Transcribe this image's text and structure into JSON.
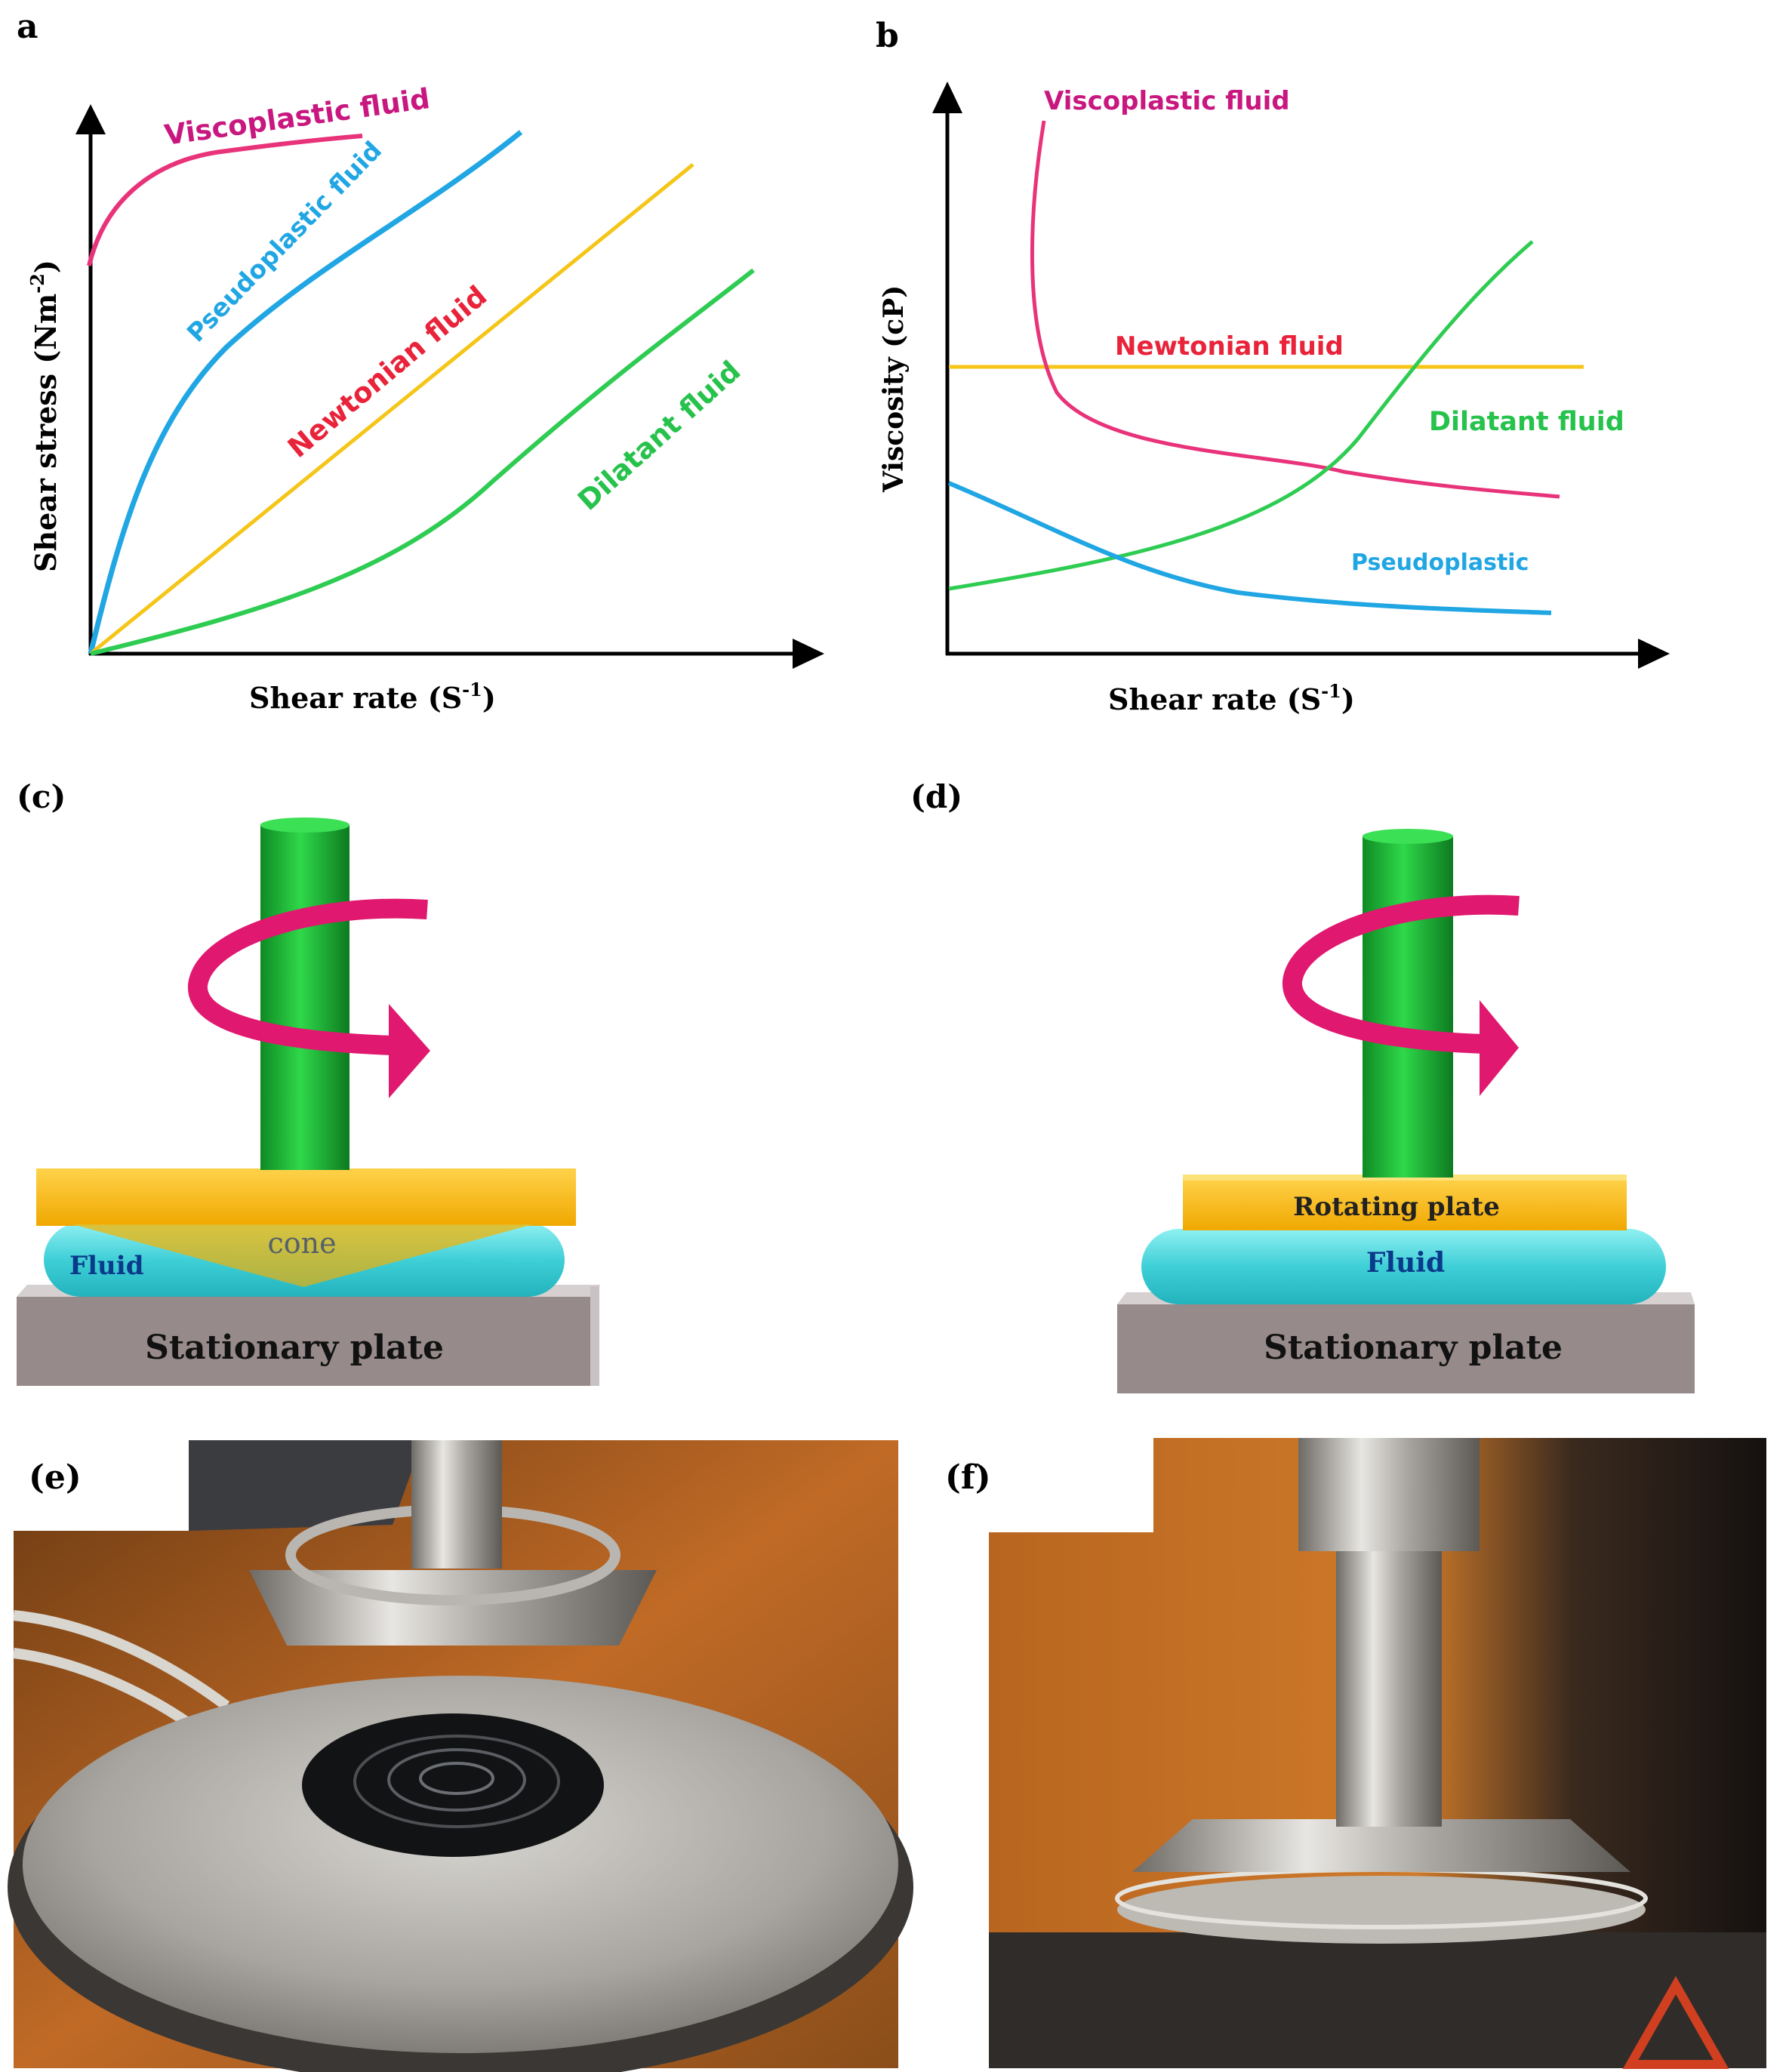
{
  "panels": {
    "a": {
      "letter": "a",
      "xlabel": "Shear rate (S",
      "xlabel_sup": "-1",
      "xlabel_end": ")",
      "ylabel": "Shear stress (Nm",
      "ylabel_sup": "-2",
      "ylabel_end": ")",
      "curves": [
        {
          "name": "Viscoplastic fluid",
          "color": "#e8337a",
          "label_color": "#c8177f"
        },
        {
          "name": "Pseudoplastic fluid",
          "color": "#21a6e4",
          "label_color": "#21a6e4"
        },
        {
          "name": "Newtonian fluid",
          "color": "#f5c518",
          "label_color": "#e8233a"
        },
        {
          "name": "Dilatant fluid",
          "color": "#2ecc52",
          "label_color": "#27c24c"
        }
      ]
    },
    "b": {
      "letter": "b",
      "xlabel": "Shear rate (S",
      "xlabel_sup": "-1",
      "xlabel_end": ")",
      "ylabel": "Viscosity  (cP)",
      "curves": [
        {
          "name": "Viscoplastic fluid",
          "color": "#e8337a",
          "label_color": "#c8177f"
        },
        {
          "name": "Newtonian fluid",
          "color": "#f5c518",
          "label_color": "#e8233a"
        },
        {
          "name": "Dilatant fluid",
          "color": "#2ecc52",
          "label_color": "#27c24c"
        },
        {
          "name": "Pseudoplastic",
          "color": "#21a6e4",
          "label_color": "#21a6e4"
        }
      ]
    },
    "c": {
      "letter": "(c)",
      "cone_label": "cone",
      "fluid_label": "Fluid",
      "base_label": "Stationary plate"
    },
    "d": {
      "letter": "(d)",
      "plate_label": "Rotating plate",
      "fluid_label": "Fluid",
      "base_label": "Stationary plate"
    },
    "e": {
      "letter": "(e)"
    },
    "f": {
      "letter": "(f)"
    }
  },
  "colors": {
    "shaft_green": "#1fbf3a",
    "arrow_magenta": "#e0186f",
    "plate_yellow": "#f4b400",
    "fluid_cyan": "#45d1d8",
    "base_grey": "#968a8a"
  }
}
